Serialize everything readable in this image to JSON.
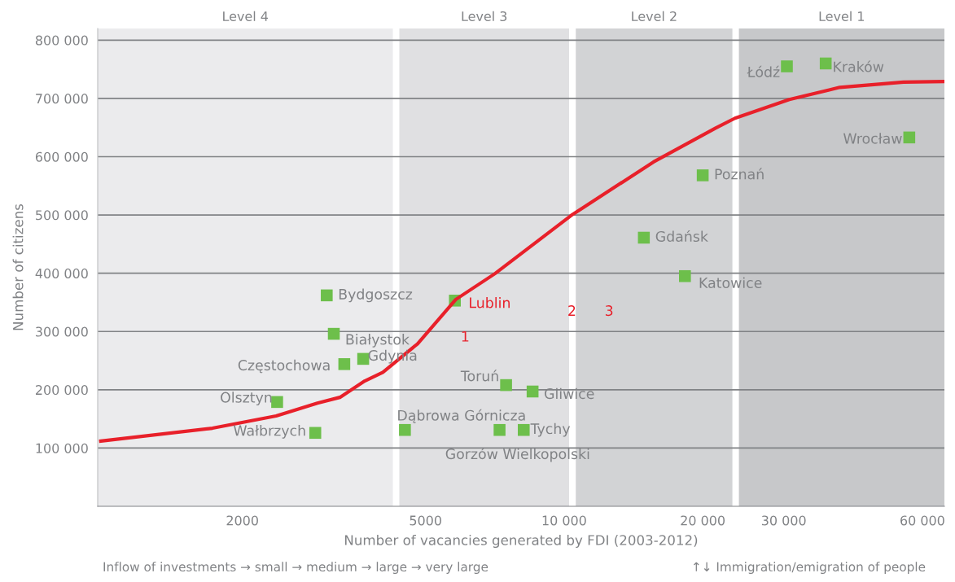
{
  "chart_data": {
    "type": "scatter",
    "xlabel": "Number of vacancies generated by FDI (2003-2012)",
    "ylabel": "Number of citizens",
    "log": "x",
    "xlim": [
      970,
      67000
    ],
    "ylim": [
      0,
      820000
    ],
    "xticks": [
      2000,
      5000,
      {
        "value": 10000,
        "label": "10 000"
      },
      {
        "value": 20000,
        "label": "20 000"
      },
      {
        "value": 30000,
        "label": "30 000"
      },
      {
        "value": 60000,
        "label": "60 000"
      }
    ],
    "yticks": [
      {
        "value": 100000,
        "label": "100 000"
      },
      {
        "value": 200000,
        "label": "200 000"
      },
      {
        "value": 300000,
        "label": "300 000"
      },
      {
        "value": 400000,
        "label": "400 000"
      },
      {
        "value": 500000,
        "label": "500 000"
      },
      {
        "value": 600000,
        "label": "600 000"
      },
      {
        "value": 700000,
        "label": "700 000"
      },
      {
        "value": 800000,
        "label": "800 000"
      }
    ],
    "grid": "y",
    "marker": "square",
    "legend": false,
    "bands": [
      {
        "axis": "x",
        "from": 970,
        "to": 4245,
        "label": "Level 4",
        "color": "#ebebed"
      },
      {
        "axis": "x",
        "from": 4385,
        "to": 10250,
        "label": "Level 3",
        "color": "#e0e0e2"
      },
      {
        "axis": "x",
        "from": 10600,
        "to": 23200,
        "label": "Level 2",
        "color": "#d2d3d5"
      },
      {
        "axis": "x",
        "from": 23970,
        "to": 67000,
        "label": "Level 1",
        "color": "#c7c8ca"
      }
    ],
    "series": [
      {
        "type": "line",
        "marker": "none",
        "color": "#e8202a",
        "x": [
          985,
          1722,
          2368,
          2911,
          3258,
          3688,
          4039,
          4805,
          5817,
          7066,
          10350,
          15640,
          21330,
          23500,
          30840,
          39700,
          54600,
          67000
        ],
        "values": [
          112000,
          134000,
          155000,
          177000,
          187000,
          215000,
          230000,
          279000,
          355000,
          399000,
          499000,
          591000,
          649000,
          666000,
          698000,
          719000,
          728000,
          729000
        ]
      },
      {
        "color": "#6dbf4b",
        "x": [
          30470,
          37000,
          56200,
          20000,
          14900,
          18300,
          5790,
          3050,
          3160,
          3330,
          3660,
          2380,
          2880,
          4510,
          7480,
          8540,
          7240,
          8170
        ],
        "values": [
          755000,
          760000,
          633000,
          568000,
          461000,
          395000,
          353000,
          362000,
          296000,
          244000,
          253000,
          179000,
          126000,
          131000,
          208000,
          197000,
          131000,
          131000
        ]
      }
    ],
    "annotations": [
      {
        "text": "Łódź",
        "x": 30470,
        "y": 755000
      },
      {
        "text": "Kraków",
        "x": 37000,
        "y": 760000
      },
      {
        "text": "Wrocław",
        "x": 56200,
        "y": 633000
      },
      {
        "text": "Poznań",
        "x": 20000,
        "y": 568000
      },
      {
        "text": "Gdańsk",
        "x": 14900,
        "y": 461000
      },
      {
        "text": "Katowice",
        "x": 18300,
        "y": 395000
      },
      {
        "text": "Lublin",
        "x": 5790,
        "y": 353000
      },
      {
        "text": "Bydgoszcz",
        "x": 3050,
        "y": 362000
      },
      {
        "text": "Białystok",
        "x": 3160,
        "y": 296000
      },
      {
        "text": "Częstochowa",
        "x": 3330,
        "y": 244000
      },
      {
        "text": "Gdynia",
        "x": 3660,
        "y": 253000
      },
      {
        "text": "Olsztyn",
        "x": 2380,
        "y": 179000
      },
      {
        "text": "Wałbrzych",
        "x": 2880,
        "y": 126000
      },
      {
        "text": "Dąbrowa Górnicza",
        "x": 4510,
        "y": 131000
      },
      {
        "text": "Toruń",
        "x": 7480,
        "y": 208000
      },
      {
        "text": "Gliwice",
        "x": 8540,
        "y": 197000
      },
      {
        "text": "Gorzów Wielkopolski",
        "x": 7240,
        "y": 131000
      },
      {
        "text": "Tychy",
        "x": 8170,
        "y": 131000
      },
      "1",
      "2",
      "3",
      "Inflow of investments → small → medium → large → very large",
      "↑↓ Immigration/emigration of people"
    ]
  }
}
